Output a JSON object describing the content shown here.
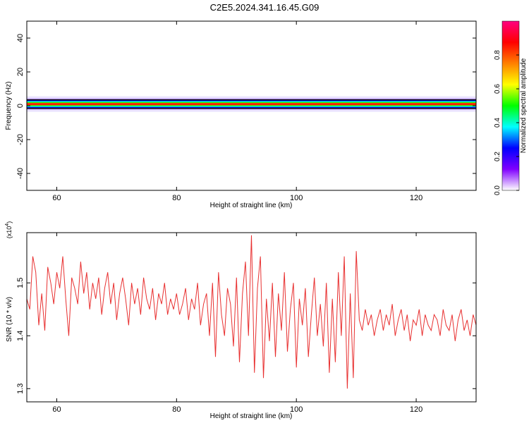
{
  "title": "C2E5.2024.341.16.45.G09",
  "chart_data": [
    {
      "type": "heatmap",
      "xlabel": "Height of straight line (km)",
      "ylabel": "Frequency (Hz)",
      "xlim": [
        55,
        130
      ],
      "ylim": [
        -50,
        50
      ],
      "x_ticks": [
        60,
        80,
        100,
        120
      ],
      "y_ticks": [
        -40,
        -20,
        0,
        20,
        40
      ],
      "x_tick_labels": [
        "60",
        "80",
        "100",
        "120"
      ],
      "y_tick_labels": [
        "-40",
        "-20",
        "0",
        "20",
        "40"
      ],
      "band_center_hz": 1,
      "colorbar": {
        "label": "Normalized spectral amplitude",
        "range": [
          0,
          1
        ],
        "ticks": [
          0,
          0.2,
          0.4,
          0.6,
          0.8
        ],
        "tick_labels": [
          "0.0",
          "0.2",
          "0.4",
          "0.6",
          "0.8"
        ],
        "colormap": [
          "#ffffff",
          "#8000ff",
          "#0000ff",
          "#00ffff",
          "#00ff00",
          "#ffff00",
          "#ff8000",
          "#ff0000",
          "#ff0080"
        ]
      }
    },
    {
      "type": "line",
      "xlabel": "Height of straight line (km)",
      "ylabel": "SNR (10 * v/v)",
      "y_multiplier": "(x10",
      "y_multiplier_exp": "4",
      "y_multiplier_close": ")",
      "xlim": [
        55,
        130
      ],
      "ylim": [
        1.275,
        1.595
      ],
      "x_ticks": [
        60,
        80,
        100,
        120
      ],
      "y_ticks": [
        1.3,
        1.4,
        1.5
      ],
      "x_tick_labels": [
        "60",
        "80",
        "100",
        "120"
      ],
      "y_tick_labels": [
        "1.3",
        "1.4",
        "1.5"
      ],
      "line_color": "#e83030",
      "series": [
        {
          "x": [
            55.0,
            55.5,
            56.0,
            56.5,
            57.0,
            57.5,
            58.0,
            58.5,
            59.0,
            59.5,
            60.0,
            60.5,
            61.0,
            61.5,
            62.0,
            62.5,
            63.0,
            63.5,
            64.0,
            64.5,
            65.0,
            65.5,
            66.0,
            66.5,
            67.0,
            67.5,
            68.0,
            68.5,
            69.0,
            69.5,
            70.0,
            70.5,
            71.0,
            71.5,
            72.0,
            72.5,
            73.0,
            73.5,
            74.0,
            74.5,
            75.0,
            75.5,
            76.0,
            76.5,
            77.0,
            77.5,
            78.0,
            78.5,
            79.0,
            79.5,
            80.0,
            80.5,
            81.0,
            81.5,
            82.0,
            82.5,
            83.0,
            83.5,
            84.0,
            84.5,
            85.0,
            85.5,
            86.0,
            86.5,
            87.0,
            87.5,
            88.0,
            88.5,
            89.0,
            89.5,
            90.0,
            90.5,
            91.0,
            91.5,
            92.0,
            92.5,
            93.0,
            93.5,
            94.0,
            94.5,
            95.0,
            95.5,
            96.0,
            96.5,
            97.0,
            97.5,
            98.0,
            98.5,
            99.0,
            99.5,
            100.0,
            100.5,
            101.0,
            101.5,
            102.0,
            102.5,
            103.0,
            103.5,
            104.0,
            104.5,
            105.0,
            105.5,
            106.0,
            106.5,
            107.0,
            107.5,
            108.0,
            108.5,
            109.0,
            109.5,
            110.0,
            110.5,
            111.0,
            111.5,
            112.0,
            112.5,
            113.0,
            113.5,
            114.0,
            114.5,
            115.0,
            115.5,
            116.0,
            116.5,
            117.0,
            117.5,
            118.0,
            118.5,
            119.0,
            119.5,
            120.0,
            120.5,
            121.0,
            121.5,
            122.0,
            122.5,
            123.0,
            123.5,
            124.0,
            124.5,
            125.0,
            125.5,
            126.0,
            126.5,
            127.0,
            127.5,
            128.0,
            128.5,
            129.0,
            129.5,
            130.0
          ],
          "y": [
            1.47,
            1.45,
            1.55,
            1.52,
            1.42,
            1.48,
            1.41,
            1.53,
            1.5,
            1.46,
            1.52,
            1.49,
            1.55,
            1.47,
            1.4,
            1.51,
            1.49,
            1.46,
            1.54,
            1.48,
            1.52,
            1.45,
            1.5,
            1.47,
            1.51,
            1.44,
            1.49,
            1.52,
            1.46,
            1.5,
            1.43,
            1.48,
            1.51,
            1.47,
            1.42,
            1.5,
            1.46,
            1.49,
            1.44,
            1.51,
            1.47,
            1.45,
            1.49,
            1.43,
            1.48,
            1.46,
            1.5,
            1.44,
            1.47,
            1.45,
            1.48,
            1.44,
            1.46,
            1.49,
            1.43,
            1.47,
            1.45,
            1.5,
            1.42,
            1.46,
            1.48,
            1.4,
            1.5,
            1.36,
            1.52,
            1.44,
            1.4,
            1.49,
            1.46,
            1.38,
            1.51,
            1.35,
            1.48,
            1.54,
            1.4,
            1.59,
            1.33,
            1.49,
            1.55,
            1.32,
            1.47,
            1.39,
            1.5,
            1.36,
            1.48,
            1.41,
            1.52,
            1.37,
            1.45,
            1.5,
            1.34,
            1.47,
            1.42,
            1.49,
            1.36,
            1.44,
            1.51,
            1.4,
            1.46,
            1.38,
            1.5,
            1.33,
            1.47,
            1.35,
            1.52,
            1.4,
            1.55,
            1.3,
            1.48,
            1.32,
            1.56,
            1.43,
            1.41,
            1.45,
            1.42,
            1.44,
            1.4,
            1.43,
            1.45,
            1.41,
            1.44,
            1.42,
            1.46,
            1.4,
            1.43,
            1.45,
            1.41,
            1.44,
            1.39,
            1.43,
            1.42,
            1.45,
            1.4,
            1.44,
            1.42,
            1.41,
            1.44,
            1.43,
            1.4,
            1.45,
            1.42,
            1.41,
            1.44,
            1.39,
            1.43,
            1.45,
            1.41,
            1.43,
            1.4,
            1.44,
            1.42
          ]
        }
      ]
    }
  ]
}
